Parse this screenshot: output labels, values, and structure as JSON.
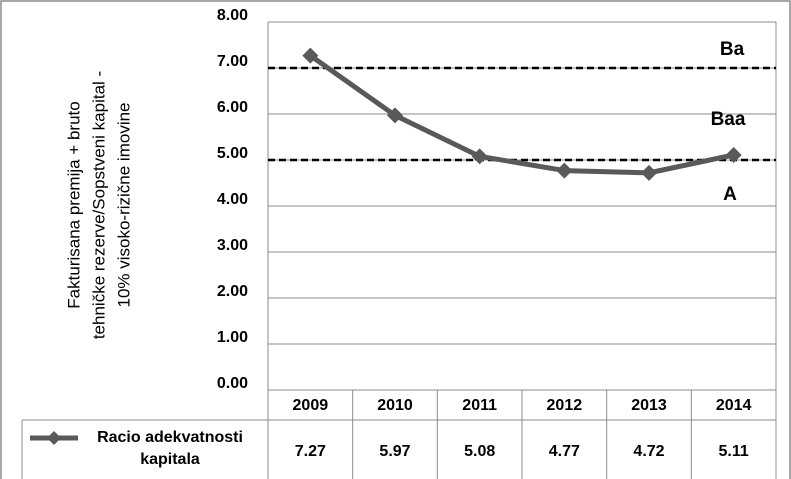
{
  "chart_data": {
    "type": "line",
    "y_label": [
      "Fakturisana premija + bruto",
      "tehničke rezerve/Sopstveni kapital -",
      "10% visoko-rizične imovine"
    ],
    "categories": [
      "2009",
      "2010",
      "2011",
      "2012",
      "2013",
      "2014"
    ],
    "series": [
      {
        "name": "Racio adekvatnosti kapitala",
        "color": "#595959",
        "values": [
          7.27,
          5.97,
          5.08,
          4.77,
          4.72,
          5.11
        ]
      }
    ],
    "ylim": [
      0,
      8
    ],
    "yticks": [
      {
        "value": 0,
        "label": "0.00"
      },
      {
        "value": 1,
        "label": "1.00"
      },
      {
        "value": 2,
        "label": "2.00"
      },
      {
        "value": 3,
        "label": "3.00"
      },
      {
        "value": 4,
        "label": "4.00"
      },
      {
        "value": 5,
        "label": "5.00"
      },
      {
        "value": 6,
        "label": "6.00"
      },
      {
        "value": 7,
        "label": "7.00"
      },
      {
        "value": 8,
        "label": "8.00"
      }
    ],
    "grid": true,
    "reference_lines": [
      7,
      5
    ],
    "zone_labels": [
      "Ba",
      "Baa",
      "A"
    ]
  }
}
